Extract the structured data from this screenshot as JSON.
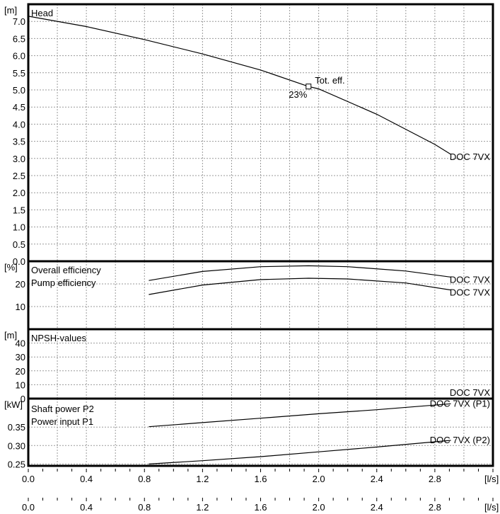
{
  "chart_data": {
    "type": "line",
    "x_unit": "[l/s]",
    "xlim": [
      0,
      3.2
    ],
    "x_ticks": [
      "0.0",
      "0.4",
      "0.8",
      "1.2",
      "1.6",
      "2.0",
      "2.4",
      "2.8"
    ],
    "grid": true,
    "panels": [
      {
        "id": "head",
        "unit": "[m]",
        "ylim": [
          0,
          7.5
        ],
        "y_ticks": [
          "0.0",
          "0.5",
          "1.0",
          "1.5",
          "2.0",
          "2.5",
          "3.0",
          "3.5",
          "4.0",
          "4.5",
          "5.0",
          "5.5",
          "6.0",
          "6.5",
          "7.0"
        ],
        "labels": [
          "Head"
        ],
        "series": [
          {
            "name": "DOC 7VX",
            "x": [
              0.0,
              0.4,
              0.8,
              1.2,
              1.6,
              1.93,
              2.0,
              2.4,
              2.8,
              2.91
            ],
            "y": [
              7.15,
              6.85,
              6.47,
              6.05,
              5.58,
              5.1,
              5.03,
              4.29,
              3.41,
              3.12
            ]
          }
        ],
        "operating_point": {
          "x": 1.93,
          "y": 5.1,
          "label": "Tot. eff.",
          "value_label": "23%"
        }
      },
      {
        "id": "efficiency",
        "unit": "[%]",
        "ylim": [
          0,
          30
        ],
        "y_ticks": [
          "10",
          "20"
        ],
        "labels": [
          "Overall efficiency",
          "Pump efficiency"
        ],
        "series": [
          {
            "name": "DOC 7VX",
            "x": [
              0.83,
              1.2,
              1.6,
              1.93,
              2.2,
              2.6,
              2.91
            ],
            "y": [
              21.5,
              25.5,
              27.6,
              28.0,
              27.6,
              25.7,
              23.0
            ]
          },
          {
            "name": "DOC 7VX",
            "x": [
              0.83,
              1.2,
              1.6,
              1.93,
              2.2,
              2.6,
              2.91
            ],
            "y": [
              15.3,
              19.5,
              21.9,
              22.5,
              22.2,
              20.4,
              17.3
            ]
          }
        ]
      },
      {
        "id": "npsh",
        "unit": "[m]",
        "ylim": [
          0,
          50
        ],
        "y_ticks": [
          "0",
          "10",
          "20",
          "30",
          "40"
        ],
        "labels": [
          "NPSH-values"
        ],
        "series": [
          {
            "name": "DOC 7VX",
            "x": [],
            "y": []
          }
        ]
      },
      {
        "id": "power",
        "unit": "[kW]",
        "ylim": [
          0.245,
          0.427
        ],
        "y_ticks": [
          "0.25",
          "0.30",
          "0.35"
        ],
        "labels": [
          "Shaft power P2",
          "Power input P1"
        ],
        "series": [
          {
            "name": "DOC 7VX (P1)",
            "x": [
              0.83,
              1.2,
              1.6,
              2.0,
              2.4,
              2.91
            ],
            "y": [
              0.351,
              0.362,
              0.374,
              0.386,
              0.397,
              0.413
            ]
          },
          {
            "name": "DOC 7VX (P2)",
            "x": [
              0.83,
              1.2,
              1.6,
              2.0,
              2.4,
              2.91
            ],
            "y": [
              0.25,
              0.259,
              0.27,
              0.283,
              0.296,
              0.314
            ]
          }
        ]
      }
    ]
  }
}
